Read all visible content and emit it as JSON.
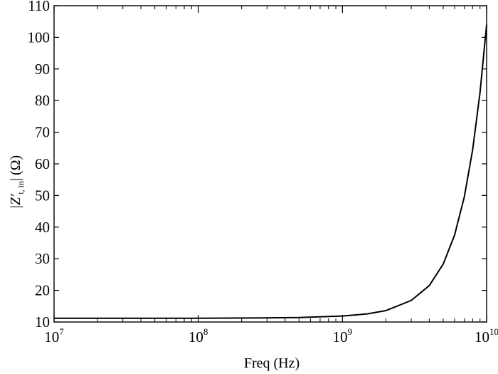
{
  "chart_data": {
    "type": "line",
    "title": "",
    "xlabel": "Freq (Hz)",
    "ylabel": "|Z′t, in| (Ω)",
    "ylabel_parts": {
      "left_bar": "|",
      "base": "Z′",
      "subscript": "t, in",
      "right_bar": "|",
      "unit": "(Ω)"
    },
    "x_scale": "log",
    "xlim": [
      10000000,
      10000000000
    ],
    "ylim": [
      10,
      110
    ],
    "x_ticks": [
      {
        "value": 10000000,
        "base": "10",
        "exp": "7"
      },
      {
        "value": 100000000,
        "base": "10",
        "exp": "8"
      },
      {
        "value": 1000000000,
        "base": "10",
        "exp": "9"
      },
      {
        "value": 10000000000,
        "base": "10",
        "exp": "10"
      }
    ],
    "y_ticks": [
      10,
      20,
      30,
      40,
      50,
      60,
      70,
      80,
      90,
      100,
      110
    ],
    "grid": false,
    "series": [
      {
        "color": "#000000",
        "x": [
          10000000,
          100000000,
          300000000,
          500000000,
          1000000000,
          1500000000,
          2000000000,
          3000000000,
          4000000000,
          5000000000,
          6000000000,
          7000000000,
          8000000000,
          9000000000,
          10000000000
        ],
        "y": [
          11.2,
          11.2,
          11.3,
          11.4,
          11.9,
          12.6,
          13.6,
          16.8,
          21.5,
          28.3,
          37.5,
          49.5,
          64.5,
          82.5,
          104
        ]
      }
    ]
  }
}
